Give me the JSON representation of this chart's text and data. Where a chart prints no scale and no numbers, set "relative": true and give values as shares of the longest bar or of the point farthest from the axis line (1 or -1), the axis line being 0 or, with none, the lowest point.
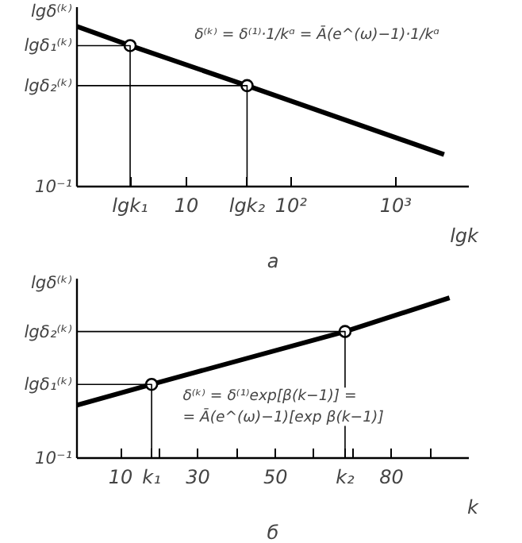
{
  "chart_data": [
    {
      "type": "line",
      "title": "а",
      "xlabel": "lgk",
      "ylabel": "lgδ⁽ᵏ⁾",
      "log": "x",
      "relative": true,
      "grid": false,
      "xlim": [
        0.9,
        5000
      ],
      "xticks": [
        {
          "value": 2.9,
          "label": "lgk₁"
        },
        10,
        {
          "value": 38,
          "label": "lgk₂"
        },
        {
          "value": 100,
          "label": "10²"
        },
        {
          "value": 1000,
          "label": "10³"
        }
      ],
      "series": [
        {
          "color": "#000000",
          "x": [
            0.9,
            2.9,
            38,
            2900
          ],
          "values": [
            1.0,
            0.88,
            0.63,
            0.2
          ]
        },
        {
          "type": "scatter",
          "color": "#000000",
          "marker": "circle",
          "x": [
            2.9,
            38
          ],
          "values": [
            0.88,
            0.63
          ]
        },
        {
          "name": "lgδ₁⁽ᵏ⁾",
          "color": "#000000",
          "x": [
            0.9,
            2.9,
            2.9
          ],
          "values": [
            0.88,
            0.88,
            0
          ]
        },
        {
          "name": "lgδ₂⁽ᵏ⁾",
          "color": "#000000",
          "x": [
            0.9,
            38,
            38
          ],
          "values": [
            0.63,
            0.63,
            0
          ]
        }
      ],
      "annotations": [
        "δ⁽ᵏ⁾ = δ⁽¹⁾·1/kᵅ = Ā(e^(ω)−1)·1/kᵅ",
        "10⁻¹"
      ]
    },
    {
      "type": "line",
      "title": "б",
      "xlabel": "k",
      "ylabel": "lgδ⁽ᵏ⁾",
      "relative": true,
      "grid": false,
      "xlim": [
        -1.3,
        100
      ],
      "xticks": [
        10,
        {
          "value": 18,
          "label": "k₁"
        },
        {
          "value": 20,
          "label": null
        },
        30,
        {
          "value": 40,
          "label": null
        },
        50,
        {
          "value": 60,
          "label": null
        },
        {
          "value": 68,
          "label": "k₂"
        },
        {
          "value": 70,
          "label": null
        },
        80,
        {
          "value": 90,
          "label": null
        }
      ],
      "series": [
        {
          "color": "#000000",
          "x": [
            -1.3,
            18,
            68,
            95
          ],
          "values": [
            0.33,
            0.46,
            0.79,
            1.0
          ]
        },
        {
          "type": "scatter",
          "color": "#000000",
          "marker": "circle",
          "x": [
            18,
            68
          ],
          "values": [
            0.46,
            0.79
          ]
        },
        {
          "name": "lgδ₂⁽ᵏ⁾",
          "color": "#000000",
          "x": [
            -1.3,
            68,
            68
          ],
          "values": [
            0.79,
            0.79,
            0
          ]
        },
        {
          "name": "lgδ₁⁽ᵏ⁾",
          "color": "#000000",
          "x": [
            -1.3,
            18,
            18
          ],
          "values": [
            0.46,
            0.46,
            0
          ]
        }
      ],
      "annotations": [
        "δ⁽ᵏ⁾ = δ⁽¹⁾exp[β(k−1)] = = Ā(e^(ω)−1)[exp β(k−1)]",
        "10⁻¹"
      ]
    }
  ]
}
